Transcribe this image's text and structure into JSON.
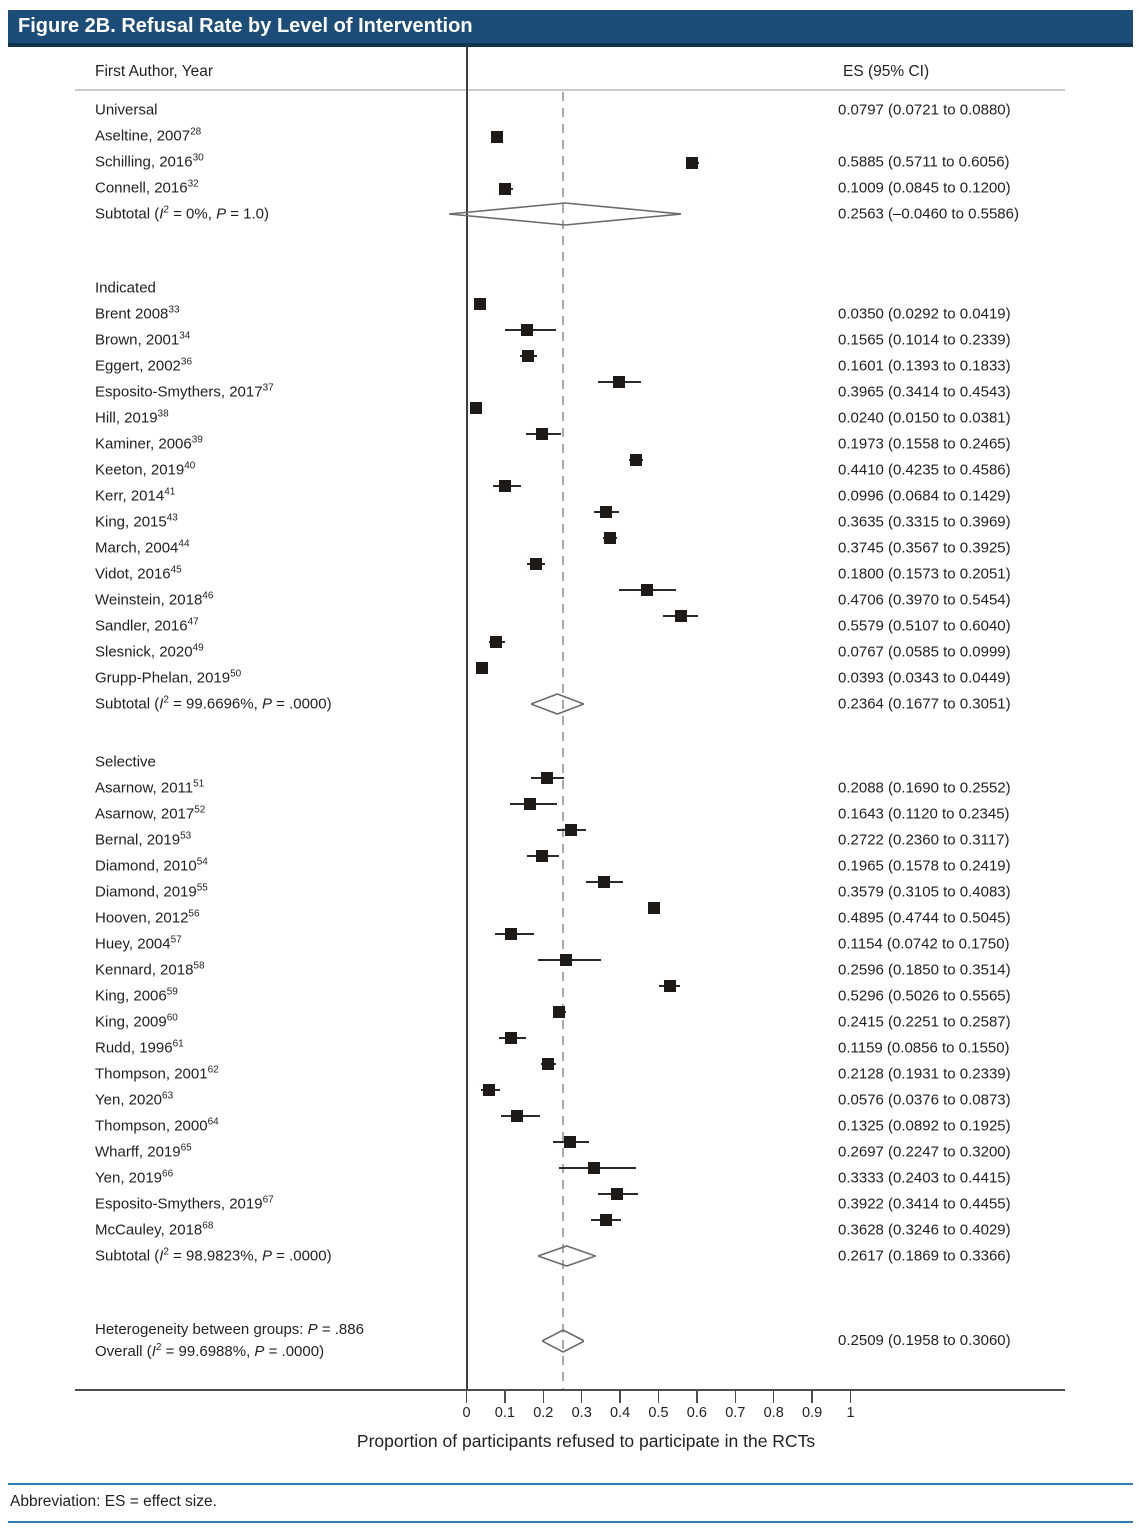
{
  "title": "Figure 2B. Refusal Rate by Level of Intervention",
  "columns": {
    "author": "First Author, Year",
    "es": "ES (95% CI)"
  },
  "footer_note": "Abbreviation: ES = effect size.",
  "colors": {
    "title_bar": "#1b4d78",
    "title_bar_edge": "#11344f",
    "footer_line": "#2e7cb5",
    "text": "#231f20",
    "marker": "#1e1a18",
    "diamond_outline": "#6b6b6b",
    "axis": "#4d4d4d",
    "header_rule": "#c9c9c9",
    "dashed_line": "#a9a9a9"
  },
  "chart_data": {
    "type": "forest",
    "title": "Figure 2B. Refusal Rate by Level of Intervention",
    "xlabel": "Proportion of participants refused to participate in the RCTs",
    "axis_range": [
      0,
      1
    ],
    "x_tick_labels": [
      "0",
      "0.1",
      "0.2",
      "0.3",
      "0.4",
      "0.5",
      "0.6",
      "0.7",
      "0.8",
      "0.9",
      "1"
    ],
    "x_tick_values": [
      0,
      0.1,
      0.2,
      0.3,
      0.4,
      0.5,
      0.6,
      0.7,
      0.8,
      0.9,
      1
    ],
    "null_line_x": 0,
    "overall_dashed_x": 0.2509,
    "groups": [
      {
        "name": "Universal",
        "header_es_text": "0.0797 (0.0721 to 0.0880)",
        "studies": [
          {
            "label": "Aseltine, 2007",
            "sup": "28",
            "es": 0.0797,
            "lo": 0.0721,
            "hi": 0.088,
            "es_text": ""
          },
          {
            "label": "Schilling, 2016",
            "sup": "30",
            "es": 0.5885,
            "lo": 0.5711,
            "hi": 0.6056,
            "es_text": "0.5885 (0.5711 to 0.6056)"
          },
          {
            "label": "Connell, 2016",
            "sup": "32",
            "es": 0.1009,
            "lo": 0.0845,
            "hi": 0.12,
            "es_text": "0.1009 (0.0845 to 0.1200)"
          }
        ],
        "subtotal": {
          "label_parts": [
            {
              "t": "Subtotal ("
            },
            {
              "t": "I",
              "i": true
            },
            {
              "t": "2",
              "s": true
            },
            {
              "t": " = 0%, "
            },
            {
              "t": "P",
              "i": true
            },
            {
              "t": " = 1.0)"
            }
          ],
          "es": 0.2563,
          "lo": -0.046,
          "hi": 0.5586,
          "es_text": "0.2563 (–0.0460 to 0.5586)",
          "diamond_h": 24
        }
      },
      {
        "name": "Indicated",
        "header_es_text": "",
        "studies": [
          {
            "label": "Brent 2008",
            "sup": "33",
            "es": 0.035,
            "lo": 0.0292,
            "hi": 0.0419,
            "es_text": "0.0350 (0.0292 to 0.0419)"
          },
          {
            "label": "Brown, 2001",
            "sup": "34",
            "es": 0.1565,
            "lo": 0.1014,
            "hi": 0.2339,
            "es_text": "0.1565 (0.1014 to 0.2339)"
          },
          {
            "label": "Eggert, 2002",
            "sup": "36",
            "es": 0.1601,
            "lo": 0.1393,
            "hi": 0.1833,
            "es_text": "0.1601 (0.1393 to 0.1833)"
          },
          {
            "label": "Esposito-Smythers, 2017",
            "sup": "37",
            "es": 0.3965,
            "lo": 0.3414,
            "hi": 0.4543,
            "es_text": "0.3965 (0.3414 to 0.4543)"
          },
          {
            "label": "Hill, 2019",
            "sup": "38",
            "es": 0.024,
            "lo": 0.015,
            "hi": 0.0381,
            "es_text": "0.0240 (0.0150 to 0.0381)"
          },
          {
            "label": "Kaminer, 2006",
            "sup": "39",
            "es": 0.1973,
            "lo": 0.1558,
            "hi": 0.2465,
            "es_text": "0.1973 (0.1558 to 0.2465)"
          },
          {
            "label": "Keeton, 2019",
            "sup": "40",
            "es": 0.441,
            "lo": 0.4235,
            "hi": 0.4586,
            "es_text": "0.4410 (0.4235 to 0.4586)"
          },
          {
            "label": "Kerr, 2014",
            "sup": "41",
            "es": 0.0996,
            "lo": 0.0684,
            "hi": 0.1429,
            "es_text": "0.0996 (0.0684 to 0.1429)"
          },
          {
            "label": "King, 2015",
            "sup": "43",
            "es": 0.3635,
            "lo": 0.3315,
            "hi": 0.3969,
            "es_text": "0.3635 (0.3315 to 0.3969)"
          },
          {
            "label": "March, 2004",
            "sup": "44",
            "es": 0.3745,
            "lo": 0.3567,
            "hi": 0.3925,
            "es_text": "0.3745 (0.3567 to 0.3925)"
          },
          {
            "label": "Vidot, 2016",
            "sup": "45",
            "es": 0.18,
            "lo": 0.1573,
            "hi": 0.2051,
            "es_text": "0.1800 (0.1573 to 0.2051)"
          },
          {
            "label": "Weinstein, 2018",
            "sup": "46",
            "es": 0.4706,
            "lo": 0.397,
            "hi": 0.5454,
            "es_text": "0.4706 (0.3970 to 0.5454)"
          },
          {
            "label": "Sandler, 2016",
            "sup": "47",
            "es": 0.5579,
            "lo": 0.5107,
            "hi": 0.604,
            "es_text": "0.5579 (0.5107 to 0.6040)"
          },
          {
            "label": "Slesnick, 2020",
            "sup": "49",
            "es": 0.0767,
            "lo": 0.0585,
            "hi": 0.0999,
            "es_text": "0.0767 (0.0585 to 0.0999)"
          },
          {
            "label": "Grupp-Phelan, 2019",
            "sup": "50",
            "es": 0.0393,
            "lo": 0.0343,
            "hi": 0.0449,
            "es_text": "0.0393 (0.0343 to 0.0449)"
          }
        ],
        "subtotal": {
          "label_parts": [
            {
              "t": "Subtotal ("
            },
            {
              "t": "I",
              "i": true
            },
            {
              "t": "2",
              "s": true
            },
            {
              "t": " = 99.6696%, "
            },
            {
              "t": "P",
              "i": true
            },
            {
              "t": " = .0000)"
            }
          ],
          "es": 0.2364,
          "lo": 0.1677,
          "hi": 0.3051,
          "es_text": "0.2364 (0.1677 to 0.3051)",
          "diamond_h": 22
        }
      },
      {
        "name": "Selective",
        "header_es_text": "",
        "studies": [
          {
            "label": "Asarnow, 2011",
            "sup": "51",
            "es": 0.2088,
            "lo": 0.169,
            "hi": 0.2552,
            "es_text": "0.2088 (0.1690 to 0.2552)"
          },
          {
            "label": "Asarnow, 2017",
            "sup": "52",
            "es": 0.1643,
            "lo": 0.112,
            "hi": 0.2345,
            "es_text": "0.1643 (0.1120 to 0.2345)"
          },
          {
            "label": "Bernal, 2019",
            "sup": "53",
            "es": 0.2722,
            "lo": 0.236,
            "hi": 0.3117,
            "es_text": "0.2722 (0.2360 to 0.3117)"
          },
          {
            "label": "Diamond, 2010",
            "sup": "54",
            "es": 0.1965,
            "lo": 0.1578,
            "hi": 0.2419,
            "es_text": "0.1965 (0.1578 to 0.2419)"
          },
          {
            "label": "Diamond, 2019",
            "sup": "55",
            "es": 0.3579,
            "lo": 0.3105,
            "hi": 0.4083,
            "es_text": "0.3579 (0.3105 to 0.4083)"
          },
          {
            "label": "Hooven, 2012",
            "sup": "56",
            "es": 0.4895,
            "lo": 0.4744,
            "hi": 0.5045,
            "es_text": "0.4895 (0.4744 to 0.5045)"
          },
          {
            "label": "Huey, 2004",
            "sup": "57",
            "es": 0.1154,
            "lo": 0.0742,
            "hi": 0.175,
            "es_text": "0.1154 (0.0742 to 0.1750)"
          },
          {
            "label": "Kennard, 2018",
            "sup": "58",
            "es": 0.2596,
            "lo": 0.185,
            "hi": 0.3514,
            "es_text": "0.2596 (0.1850 to 0.3514)"
          },
          {
            "label": "King, 2006",
            "sup": "59",
            "es": 0.5296,
            "lo": 0.5026,
            "hi": 0.5565,
            "es_text": "0.5296 (0.5026 to 0.5565)"
          },
          {
            "label": "King, 2009",
            "sup": "60",
            "es": 0.2415,
            "lo": 0.2251,
            "hi": 0.2587,
            "es_text": "0.2415 (0.2251 to 0.2587)"
          },
          {
            "label": "Rudd, 1996",
            "sup": "61",
            "es": 0.1159,
            "lo": 0.0856,
            "hi": 0.155,
            "es_text": "0.1159 (0.0856 to 0.1550)"
          },
          {
            "label": "Thompson, 2001",
            "sup": "62",
            "es": 0.2128,
            "lo": 0.1931,
            "hi": 0.2339,
            "es_text": "0.2128 (0.1931 to 0.2339)"
          },
          {
            "label": "Yen, 2020",
            "sup": "63",
            "es": 0.0576,
            "lo": 0.0376,
            "hi": 0.0873,
            "es_text": "0.0576 (0.0376 to 0.0873)"
          },
          {
            "label": "Thompson, 2000",
            "sup": "64",
            "es": 0.1325,
            "lo": 0.0892,
            "hi": 0.1925,
            "es_text": "0.1325 (0.0892 to 0.1925)"
          },
          {
            "label": "Wharff, 2019",
            "sup": "65",
            "es": 0.2697,
            "lo": 0.2247,
            "hi": 0.32,
            "es_text": "0.2697 (0.2247 to 0.3200)"
          },
          {
            "label": "Yen, 2019",
            "sup": "66",
            "es": 0.3333,
            "lo": 0.2403,
            "hi": 0.4415,
            "es_text": "0.3333 (0.2403 to 0.4415)"
          },
          {
            "label": "Esposito-Smythers, 2019",
            "sup": "67",
            "es": 0.3922,
            "lo": 0.3414,
            "hi": 0.4455,
            "es_text": "0.3922 (0.3414 to 0.4455)"
          },
          {
            "label": "McCauley, 2018",
            "sup": "68",
            "es": 0.3628,
            "lo": 0.3246,
            "hi": 0.4029,
            "es_text": "0.3628 (0.3246 to 0.4029)"
          }
        ],
        "subtotal": {
          "label_parts": [
            {
              "t": "Subtotal ("
            },
            {
              "t": "I",
              "i": true
            },
            {
              "t": "2",
              "s": true
            },
            {
              "t": " = 98.9823%, "
            },
            {
              "t": "P",
              "i": true
            },
            {
              "t": " = .0000)"
            }
          ],
          "es": 0.2617,
          "lo": 0.1869,
          "hi": 0.3366,
          "es_text": "0.2617 (0.1869 to 0.3366)",
          "diamond_h": 22
        }
      }
    ],
    "heterogeneity_parts": [
      {
        "t": "Heterogeneity between groups: "
      },
      {
        "t": "P",
        "i": true
      },
      {
        "t": " = .886"
      }
    ],
    "overall": {
      "label_parts": [
        {
          "t": "Overall ("
        },
        {
          "t": "I",
          "i": true
        },
        {
          "t": "2",
          "s": true
        },
        {
          "t": " = 99.6988%, "
        },
        {
          "t": "P",
          "i": true
        },
        {
          "t": " = .0000)"
        }
      ],
      "es": 0.2509,
      "lo": 0.1958,
      "hi": 0.306,
      "es_text": "0.2509 (0.1958 to 0.3060)",
      "diamond_h": 24
    }
  }
}
